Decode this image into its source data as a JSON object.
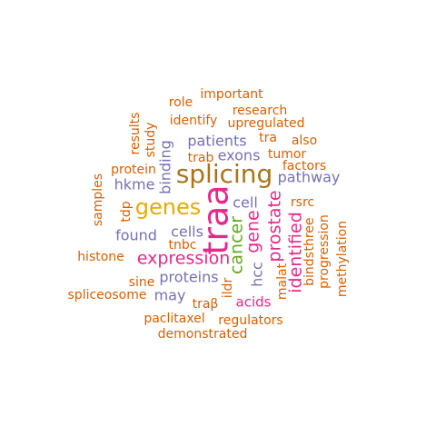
{
  "colors": {
    "orange": "#D95F02",
    "purple": "#7570B3",
    "magenta": "#E7298A",
    "green": "#66A61E",
    "gold": "#E6AB02",
    "brown": "#A6761D"
  },
  "words": [
    {
      "text": "traa",
      "color": "magenta"
    },
    {
      "text": "splicing",
      "color": "brown"
    },
    {
      "text": "genes",
      "color": "gold"
    },
    {
      "text": "expression",
      "color": "magenta"
    },
    {
      "text": "cancer",
      "color": "green"
    },
    {
      "text": "gene",
      "color": "magenta"
    },
    {
      "text": "prostate",
      "color": "magenta"
    },
    {
      "text": "identified",
      "color": "magenta"
    },
    {
      "text": "patients",
      "color": "purple"
    },
    {
      "text": "exons",
      "color": "purple"
    },
    {
      "text": "binding",
      "color": "purple"
    },
    {
      "text": "pathway",
      "color": "purple"
    },
    {
      "text": "hkme",
      "color": "purple"
    },
    {
      "text": "cells",
      "color": "purple"
    },
    {
      "text": "proteins",
      "color": "purple"
    },
    {
      "text": "found",
      "color": "purple"
    },
    {
      "text": "cell",
      "color": "purple"
    },
    {
      "text": "hcc",
      "color": "purple"
    },
    {
      "text": "may",
      "color": "purple"
    },
    {
      "text": "acids",
      "color": "magenta"
    },
    {
      "text": "important",
      "color": "orange"
    },
    {
      "text": "research",
      "color": "orange"
    },
    {
      "text": "role",
      "color": "orange"
    },
    {
      "text": "identify",
      "color": "orange"
    },
    {
      "text": "upregulated",
      "color": "orange"
    },
    {
      "text": "results",
      "color": "orange"
    },
    {
      "text": "study",
      "color": "orange"
    },
    {
      "text": "tra",
      "color": "orange"
    },
    {
      "text": "also",
      "color": "orange"
    },
    {
      "text": "trab",
      "color": "orange"
    },
    {
      "text": "tumor",
      "color": "orange"
    },
    {
      "text": "factors",
      "color": "orange"
    },
    {
      "text": "protein",
      "color": "orange"
    },
    {
      "text": "samples",
      "color": "orange"
    },
    {
      "text": "tdp",
      "color": "orange"
    },
    {
      "text": "rsrc",
      "color": "orange"
    },
    {
      "text": "tnbc",
      "color": "orange"
    },
    {
      "text": "histone",
      "color": "orange"
    },
    {
      "text": "sine",
      "color": "orange"
    },
    {
      "text": "spliceosome",
      "color": "orange"
    },
    {
      "text": "ildr",
      "color": "orange"
    },
    {
      "text": "traβ",
      "color": "orange"
    },
    {
      "text": "malat",
      "color": "orange"
    },
    {
      "text": "binds",
      "color": "orange"
    },
    {
      "text": "three",
      "color": "orange"
    },
    {
      "text": "progression",
      "color": "orange"
    },
    {
      "text": "methylation",
      "color": "orange"
    },
    {
      "text": "paclitaxel",
      "color": "orange"
    },
    {
      "text": "regulators",
      "color": "orange"
    },
    {
      "text": "demonstrated",
      "color": "orange"
    }
  ]
}
